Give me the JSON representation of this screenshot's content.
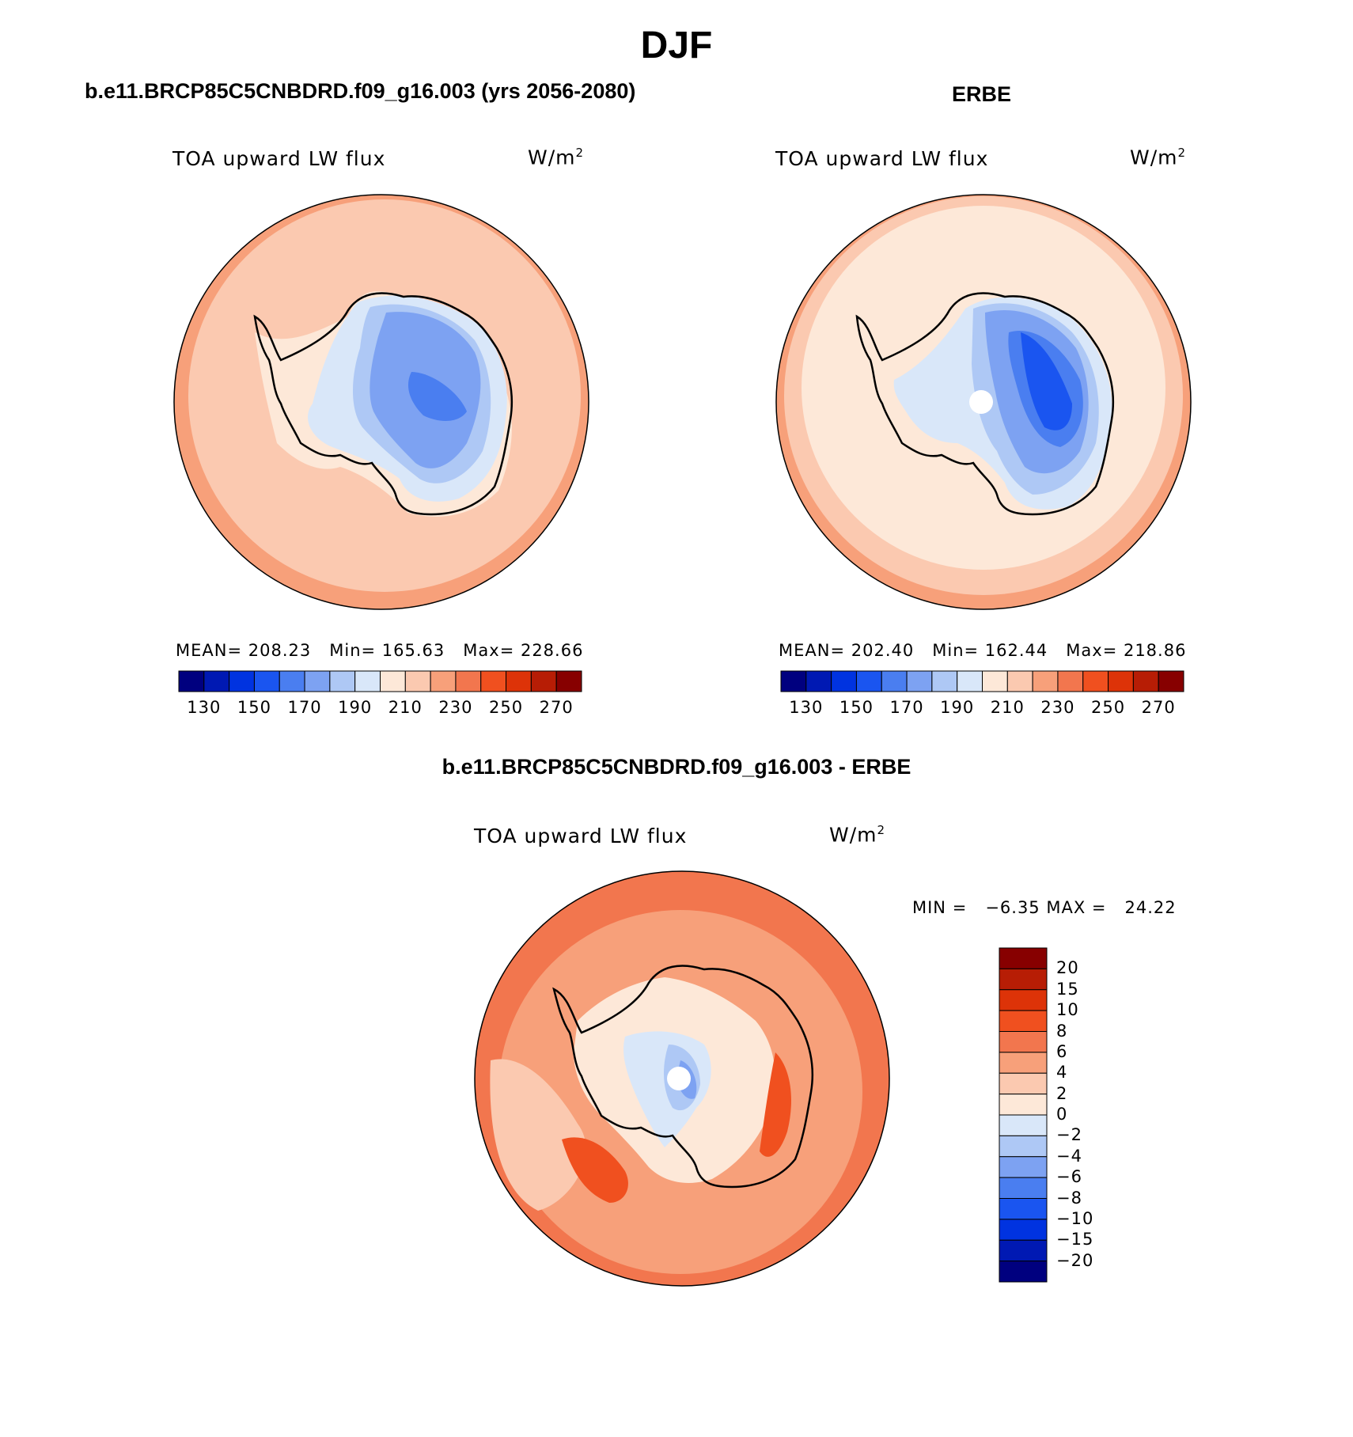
{
  "header": {
    "title": "DJF"
  },
  "panels": [
    {
      "title": "b.e11.BRCP85C5CNBDRD.f09_g16.003 (yrs 2056-2080)",
      "variable": "TOA upward LW flux",
      "units_base": "W/m",
      "units_exp": "2",
      "stats": "MEAN= 208.23   Min= 165.63   Max= 228.66",
      "colorbar_ticks": [
        "130",
        "150",
        "170",
        "190",
        "210",
        "230",
        "250",
        "270"
      ]
    },
    {
      "title": "ERBE",
      "variable": "TOA upward LW flux",
      "units_base": "W/m",
      "units_exp": "2",
      "stats": "MEAN= 202.40   Min= 162.44   Max= 218.86",
      "colorbar_ticks": [
        "130",
        "150",
        "170",
        "190",
        "210",
        "230",
        "250",
        "270"
      ]
    },
    {
      "title": "b.e11.BRCP85C5CNBDRD.f09_g16.003 - ERBE",
      "variable": "TOA upward LW flux",
      "units_base": "W/m",
      "units_exp": "2",
      "stats": "MIN =   −6.35 MAX =   24.22",
      "colorbar_ticks": [
        "20",
        "15",
        "10",
        "8",
        "6",
        "4",
        "2",
        "0",
        "−2",
        "−4",
        "−6",
        "−8",
        "−10",
        "−15",
        "−20"
      ]
    }
  ],
  "colors": {
    "abs_scale": [
      "#00007f",
      "#0019b3",
      "#0033e0",
      "#1a55f0",
      "#4a7ef0",
      "#7da2f2",
      "#aec8f5",
      "#d9e7f9",
      "#fde8d8",
      "#fbc9b0",
      "#f7a07a",
      "#f2764e",
      "#f0501f",
      "#dd3308",
      "#b71d05",
      "#870000"
    ],
    "diff_scale": [
      "#870000",
      "#b71d05",
      "#dd3308",
      "#f0501f",
      "#f2764e",
      "#f7a07a",
      "#fbc9b0",
      "#fde8d8",
      "#d9e7f9",
      "#aec8f5",
      "#7da2f2",
      "#4a7ef0",
      "#1a55f0",
      "#0033e0",
      "#0019b3",
      "#00007f"
    ]
  }
}
